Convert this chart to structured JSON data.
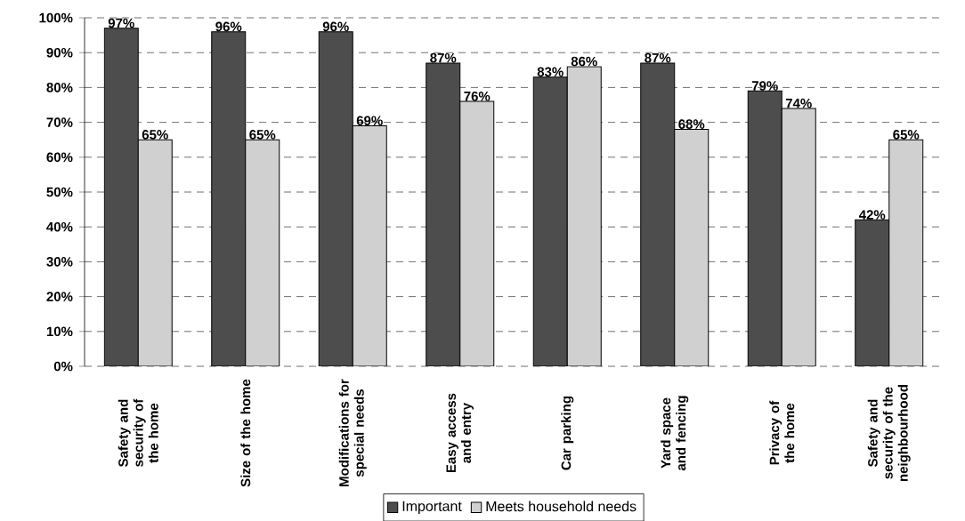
{
  "chart_data": {
    "type": "bar",
    "categories": [
      "Safety and security of the home",
      "Size of the home",
      "Modifications for special needs",
      "Easy access and entry",
      "Car parking",
      "Yard space and fencing",
      "Privacy of the home",
      "Safety and security of the neighbourhood"
    ],
    "series": [
      {
        "name": "Important",
        "color": "#4d4d4d",
        "values": [
          97,
          96,
          96,
          87,
          83,
          87,
          79,
          42
        ],
        "value_labels": [
          "97%",
          "96%",
          "96%",
          "87%",
          "83%",
          "87%",
          "79%",
          "42%"
        ]
      },
      {
        "name": "Meets household needs",
        "color": "#d0d0d0",
        "values": [
          65,
          65,
          69,
          76,
          86,
          68,
          74,
          65
        ],
        "value_labels": [
          "65%",
          "65%",
          "69%",
          "76%",
          "86%",
          "68%",
          "74%",
          "65%"
        ]
      }
    ],
    "ylim": [
      0,
      100
    ],
    "yticks": [
      {
        "value": 0,
        "label": "0%"
      },
      {
        "value": 10,
        "label": "10%"
      },
      {
        "value": 20,
        "label": "20%"
      },
      {
        "value": 30,
        "label": "30%"
      },
      {
        "value": 40,
        "label": "40%"
      },
      {
        "value": 50,
        "label": "50%"
      },
      {
        "value": 60,
        "label": "60%"
      },
      {
        "value": 70,
        "label": "70%"
      },
      {
        "value": 80,
        "label": "80%"
      },
      {
        "value": 90,
        "label": "90%"
      },
      {
        "value": 100,
        "label": "100%"
      }
    ],
    "grid": "y",
    "legend": "bottom"
  }
}
